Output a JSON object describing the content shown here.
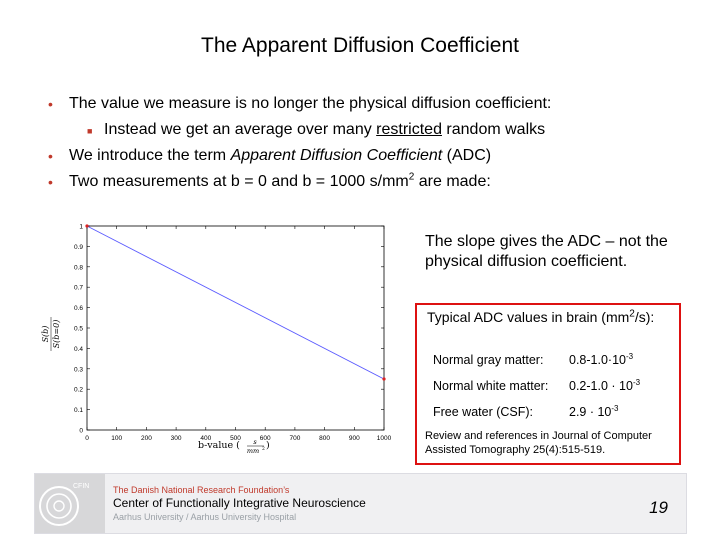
{
  "slide": {
    "title": "The Apparent Diffusion Coefficient",
    "bullets": {
      "b1": "The value we measure is no longer the physical diffusion coefficient:",
      "b2_before": "Instead we get an average over many ",
      "b2_underlined": "restricted",
      "b2_after": " random walks",
      "b3_before": "We introduce the term ",
      "b3_italic": "Apparent Diffusion Coefficient",
      "b3_after": " (ADC)",
      "b4_before": "Two measurements at b = 0 and b = 1000 s/mm",
      "b4_sup": "2",
      "b4_after": " are made:"
    },
    "slope_text": "The slope gives the ADC – not the physical diffusion coefficient.",
    "adc": {
      "header_main": "Typical ADC values in brain (mm",
      "header_sup": "2",
      "header_end": "/s):",
      "rows": [
        {
          "label": "Normal gray matter:",
          "base": "0.8-1.0·10",
          "exp": "-3"
        },
        {
          "label": "Normal white matter:",
          "base": "0.2-1.0 · 10",
          "exp": "-3"
        },
        {
          "label": "Free water (CSF):",
          "base": "2.9 · 10",
          "exp": "-3"
        }
      ],
      "reference": "Review and references in Journal of Computer Assisted Tomography 25(4):515-519."
    },
    "footer": {
      "foundation": "The Danish National Research Foundation’s",
      "center": "Center of Functionally Integrative Neuroscience",
      "university": "Aarhus University / Aarhus University Hospital",
      "logo_text": "CFIN",
      "page_number": "19"
    }
  },
  "chart_data": {
    "type": "line",
    "x": [
      0,
      1000
    ],
    "y": [
      1.0,
      0.25
    ],
    "xlim": [
      0,
      1000
    ],
    "ylim": [
      0,
      1
    ],
    "xticks": [
      "0",
      "100",
      "200",
      "300",
      "400",
      "500",
      "600",
      "700",
      "800",
      "900",
      "1000"
    ],
    "yticks": [
      "0",
      "0.1",
      "0.2",
      "0.3",
      "0.4",
      "0.5",
      "0.6",
      "0.7",
      "0.8",
      "0.9",
      "1"
    ],
    "ylabel_num": "S(b)",
    "ylabel_den": "S(b=0)",
    "xlabel_text": "b-value (",
    "xlabel_num": "s",
    "xlabel_den": "mm",
    "xlabel_den_sup": "2",
    "xlabel_close": ")",
    "line_color": "#5b5bff",
    "marker_color": "#dd2222"
  }
}
